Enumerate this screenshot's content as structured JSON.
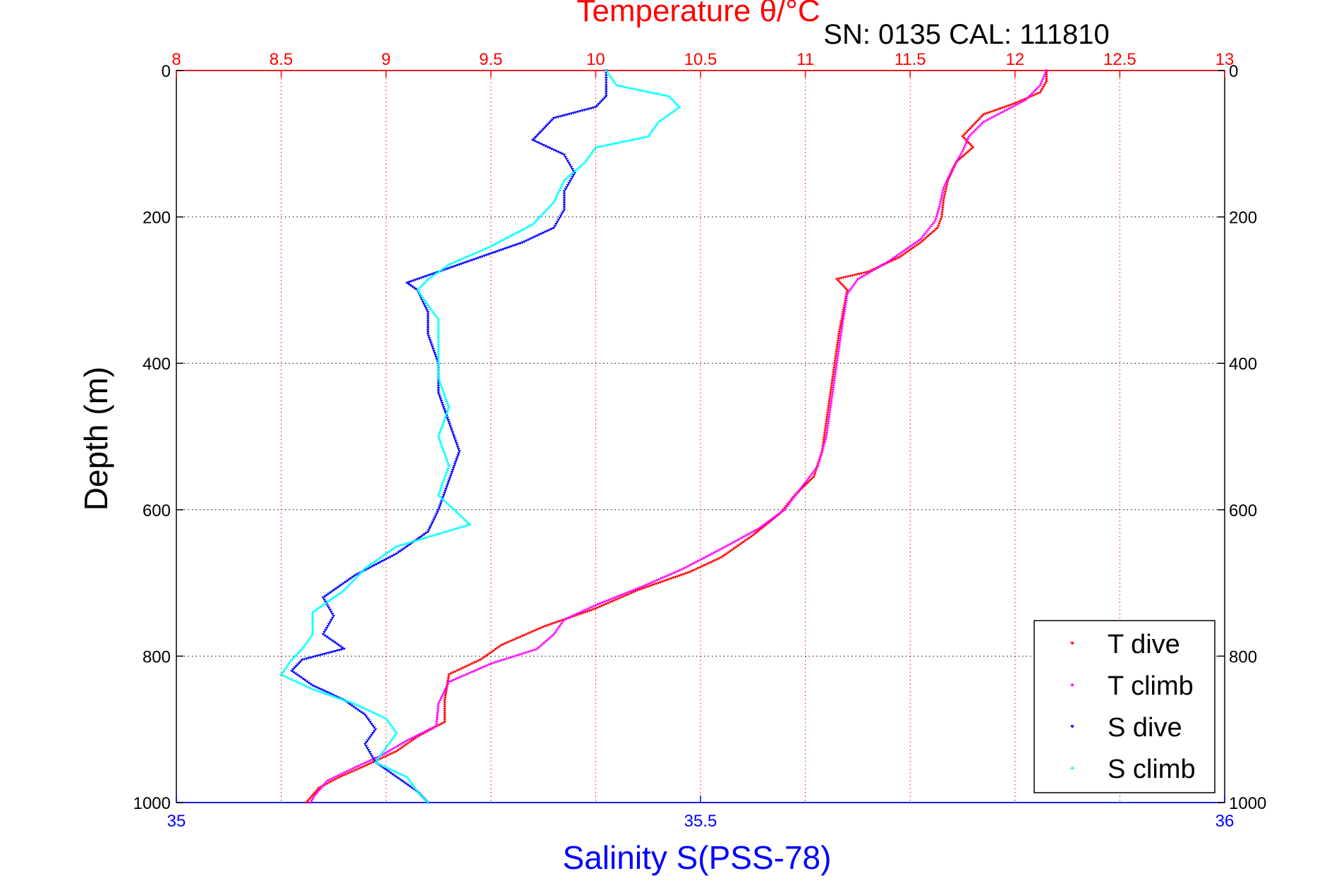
{
  "chart_data": {
    "type": "scatter",
    "title": "Temperature θ/°C",
    "annotation": "SN: 0135  CAL: 111810",
    "xlabel_top": "Temperature θ/°C",
    "xlabel_bottom": "Salinity S(PSS-78)",
    "ylabel": "Depth (m)",
    "x_top_range": [
      8,
      13
    ],
    "x_top_ticks": [
      "8",
      "8.5",
      "9",
      "9.5",
      "10",
      "10.5",
      "11",
      "11.5",
      "12",
      "12.5",
      "13"
    ],
    "x_bottom_range": [
      35,
      36
    ],
    "x_bottom_ticks": [
      "35",
      "35.5",
      "36"
    ],
    "y_range": [
      0,
      1000
    ],
    "y_reversed": true,
    "y_ticks": [
      "0",
      "200",
      "400",
      "600",
      "800",
      "1000"
    ],
    "grid": true,
    "legend_position": "bottom-right",
    "colors": {
      "top_axis": "#ff0000",
      "bottom_axis": "#0000ff",
      "grid": "#ff0000",
      "grid_h": "#000000"
    },
    "series": [
      {
        "name": "T dive",
        "axis": "top",
        "marker": "triangle-down",
        "color": "#ff0000",
        "points": [
          [
            12.15,
            0
          ],
          [
            12.15,
            15
          ],
          [
            12.12,
            30
          ],
          [
            12.0,
            45
          ],
          [
            11.85,
            60
          ],
          [
            11.8,
            75
          ],
          [
            11.75,
            90
          ],
          [
            11.8,
            105
          ],
          [
            11.72,
            125
          ],
          [
            11.68,
            150
          ],
          [
            11.66,
            175
          ],
          [
            11.65,
            200
          ],
          [
            11.63,
            215
          ],
          [
            11.55,
            235
          ],
          [
            11.45,
            255
          ],
          [
            11.3,
            275
          ],
          [
            11.15,
            285
          ],
          [
            11.2,
            300
          ],
          [
            11.18,
            330
          ],
          [
            11.16,
            360
          ],
          [
            11.14,
            400
          ],
          [
            11.12,
            440
          ],
          [
            11.1,
            480
          ],
          [
            11.08,
            520
          ],
          [
            11.04,
            555
          ],
          [
            10.95,
            580
          ],
          [
            10.88,
            605
          ],
          [
            10.75,
            635
          ],
          [
            10.6,
            665
          ],
          [
            10.45,
            685
          ],
          [
            10.2,
            710
          ],
          [
            10.0,
            735
          ],
          [
            9.75,
            760
          ],
          [
            9.55,
            785
          ],
          [
            9.45,
            805
          ],
          [
            9.3,
            825
          ],
          [
            9.28,
            860
          ],
          [
            9.28,
            890
          ],
          [
            9.15,
            910
          ],
          [
            9.05,
            930
          ],
          [
            8.9,
            950
          ],
          [
            8.78,
            965
          ],
          [
            8.68,
            980
          ],
          [
            8.62,
            1000
          ]
        ]
      },
      {
        "name": "T climb",
        "axis": "top",
        "marker": "triangle-up",
        "color": "#ff00ff",
        "points": [
          [
            12.15,
            0
          ],
          [
            12.12,
            20
          ],
          [
            12.05,
            40
          ],
          [
            11.95,
            55
          ],
          [
            11.85,
            70
          ],
          [
            11.78,
            90
          ],
          [
            11.75,
            110
          ],
          [
            11.7,
            135
          ],
          [
            11.66,
            160
          ],
          [
            11.64,
            185
          ],
          [
            11.62,
            205
          ],
          [
            11.55,
            230
          ],
          [
            11.4,
            260
          ],
          [
            11.25,
            285
          ],
          [
            11.2,
            305
          ],
          [
            11.18,
            340
          ],
          [
            11.16,
            380
          ],
          [
            11.14,
            420
          ],
          [
            11.12,
            460
          ],
          [
            11.1,
            500
          ],
          [
            11.06,
            540
          ],
          [
            10.98,
            570
          ],
          [
            10.9,
            600
          ],
          [
            10.78,
            625
          ],
          [
            10.62,
            650
          ],
          [
            10.42,
            680
          ],
          [
            10.22,
            705
          ],
          [
            10.0,
            730
          ],
          [
            9.85,
            750
          ],
          [
            9.8,
            770
          ],
          [
            9.72,
            790
          ],
          [
            9.5,
            810
          ],
          [
            9.3,
            835
          ],
          [
            9.25,
            865
          ],
          [
            9.24,
            895
          ],
          [
            9.1,
            915
          ],
          [
            8.98,
            935
          ],
          [
            8.85,
            952
          ],
          [
            8.72,
            970
          ],
          [
            8.66,
            990
          ],
          [
            8.64,
            1000
          ]
        ]
      },
      {
        "name": "S dive",
        "axis": "bottom",
        "marker": "triangle-down",
        "color": "#0000ff",
        "points": [
          [
            35.41,
            0
          ],
          [
            35.41,
            20
          ],
          [
            35.41,
            35
          ],
          [
            35.4,
            50
          ],
          [
            35.36,
            65
          ],
          [
            35.35,
            80
          ],
          [
            35.34,
            95
          ],
          [
            35.37,
            115
          ],
          [
            35.38,
            140
          ],
          [
            35.37,
            165
          ],
          [
            35.37,
            190
          ],
          [
            35.36,
            215
          ],
          [
            35.33,
            235
          ],
          [
            35.29,
            255
          ],
          [
            35.25,
            275
          ],
          [
            35.22,
            290
          ],
          [
            35.23,
            300
          ],
          [
            35.24,
            330
          ],
          [
            35.24,
            360
          ],
          [
            35.25,
            400
          ],
          [
            35.25,
            440
          ],
          [
            35.26,
            480
          ],
          [
            35.27,
            520
          ],
          [
            35.26,
            560
          ],
          [
            35.25,
            600
          ],
          [
            35.24,
            630
          ],
          [
            35.21,
            660
          ],
          [
            35.17,
            690
          ],
          [
            35.14,
            720
          ],
          [
            35.15,
            745
          ],
          [
            35.14,
            770
          ],
          [
            35.16,
            790
          ],
          [
            35.12,
            805
          ],
          [
            35.11,
            820
          ],
          [
            35.13,
            840
          ],
          [
            35.16,
            860
          ],
          [
            35.18,
            880
          ],
          [
            35.19,
            900
          ],
          [
            35.18,
            920
          ],
          [
            35.19,
            945
          ],
          [
            35.21,
            965
          ],
          [
            35.23,
            985
          ],
          [
            35.24,
            1000
          ]
        ]
      },
      {
        "name": "S climb",
        "axis": "bottom",
        "marker": "triangle-up",
        "color": "#00ffff",
        "points": [
          [
            35.41,
            0
          ],
          [
            35.42,
            20
          ],
          [
            35.47,
            35
          ],
          [
            35.48,
            50
          ],
          [
            35.46,
            70
          ],
          [
            35.45,
            90
          ],
          [
            35.4,
            105
          ],
          [
            35.39,
            125
          ],
          [
            35.37,
            150
          ],
          [
            35.36,
            180
          ],
          [
            35.34,
            210
          ],
          [
            35.3,
            240
          ],
          [
            35.26,
            265
          ],
          [
            35.24,
            285
          ],
          [
            35.23,
            300
          ],
          [
            35.25,
            340
          ],
          [
            35.25,
            380
          ],
          [
            35.25,
            420
          ],
          [
            35.26,
            460
          ],
          [
            35.25,
            500
          ],
          [
            35.26,
            540
          ],
          [
            35.25,
            580
          ],
          [
            35.28,
            620
          ],
          [
            35.21,
            650
          ],
          [
            35.18,
            680
          ],
          [
            35.16,
            710
          ],
          [
            35.13,
            740
          ],
          [
            35.13,
            770
          ],
          [
            35.12,
            790
          ],
          [
            35.11,
            805
          ],
          [
            35.1,
            825
          ],
          [
            35.13,
            845
          ],
          [
            35.17,
            865
          ],
          [
            35.2,
            885
          ],
          [
            35.21,
            905
          ],
          [
            35.2,
            925
          ],
          [
            35.19,
            945
          ],
          [
            35.22,
            965
          ],
          [
            35.23,
            985
          ],
          [
            35.24,
            1000
          ]
        ]
      }
    ]
  }
}
